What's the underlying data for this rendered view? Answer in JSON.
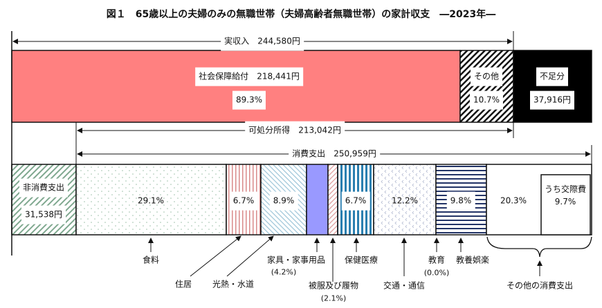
{
  "chart_data": {
    "type": "bar",
    "title": "図１　65歳以上の夫婦のみの無職世帯（夫婦高齢者無職世帯）の家計収支　―2023年―",
    "income": {
      "label": "実収入",
      "value_label": "244,580円",
      "value": 244580,
      "segments": [
        {
          "name": "社会保障給付",
          "value_label": "218,441円",
          "value": 218441,
          "percent_label": "89.3%",
          "percent": 89.3,
          "color": "#ff8080"
        },
        {
          "name": "その他",
          "percent_label": "10.7%",
          "percent": 10.7,
          "pattern": "black-diagonal-hatch"
        },
        {
          "name": "不足分",
          "value_label": "37,916円",
          "value": 37916,
          "color": "#000000"
        }
      ]
    },
    "disposable": {
      "label": "可処分所得",
      "value_label": "213,042円",
      "value": 213042
    },
    "consumption": {
      "label": "消費支出",
      "value_label": "250,959円",
      "value": 250959
    },
    "non_consumption": {
      "label": "非消費支出",
      "value_label": "31,538円",
      "value": 31538
    },
    "categories": [
      {
        "name": "食料",
        "percent_label": "29.1%",
        "percent": 29.1
      },
      {
        "name": "住居",
        "percent_label": "6.7%",
        "percent": 6.7
      },
      {
        "name": "光熱・水道",
        "percent_label": "8.9%",
        "percent": 8.9
      },
      {
        "name": "家具・家事用品",
        "percent_label": "(4.2%)",
        "percent": 4.2
      },
      {
        "name": "被服及び履物",
        "percent_label": "(2.1%)",
        "percent": 2.1
      },
      {
        "name": "保健医療",
        "percent_label": "6.7%",
        "percent": 6.7
      },
      {
        "name": "交通・通信",
        "percent_label": "12.2%",
        "percent": 12.2
      },
      {
        "name": "教育",
        "percent_label": "(0.0%)",
        "percent": 0.0
      },
      {
        "name": "教養娯楽",
        "percent_label": "9.8%",
        "percent": 9.8
      },
      {
        "name": "その他の消費支出",
        "percent_label": "20.3%",
        "percent": 20.3
      }
    ],
    "sub_item": {
      "name": "うち交際費",
      "percent_label": "9.7%",
      "percent": 9.7
    }
  }
}
